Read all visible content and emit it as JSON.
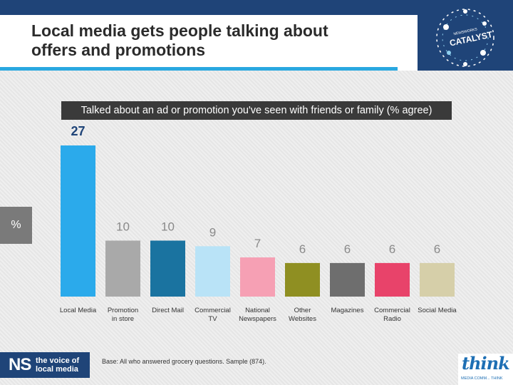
{
  "slide": {
    "title": "Local media gets people talking about\noffers and promotions",
    "subtitle": "Talked about an ad or promotion you've seen with friends or family (% agree)",
    "unit_label": "%",
    "base_note": "Base: All who answered grocery questions. Sample (874).",
    "logos": {
      "ns_mark": "NS",
      "ns_tagline": "the voice of\nlocal media",
      "catalyst": "CATALYST",
      "catalyst_small": "NEWSWORKS",
      "think": "think",
      "think_tagline": "MEDIA COMM... THINK"
    },
    "colors": {
      "header": "#1f4478",
      "accent": "#2aa8e0"
    }
  },
  "chart_data": {
    "type": "bar",
    "title": "Talked about an ad or promotion you've seen with friends or family (% agree)",
    "ylabel": "%",
    "categories": [
      "Local Media",
      "Promotion in store",
      "Direct Mail",
      "Commercial TV",
      "National Newspapers",
      "Other Websites",
      "Magazines",
      "Commercial Radio",
      "Social Media"
    ],
    "category_lines": [
      [
        "Local Media"
      ],
      [
        "Promotion",
        "in store"
      ],
      [
        "Direct Mail"
      ],
      [
        "Commercial",
        "TV"
      ],
      [
        "National",
        "Newspapers"
      ],
      [
        "Other",
        "Websites"
      ],
      [
        "Magazines"
      ],
      [
        "Commercial",
        "Radio"
      ],
      [
        "Social Media"
      ]
    ],
    "values": [
      27,
      10,
      10,
      9,
      7,
      6,
      6,
      6,
      6
    ],
    "bar_colors": [
      "#2baaeb",
      "#a9a9a9",
      "#1a73a0",
      "#b9e3f7",
      "#f6a0b4",
      "#8f8f22",
      "#6e6e6e",
      "#e8436a",
      "#d6cfa9"
    ],
    "highlight_label_color": "#1f4478",
    "label_color": "#8a8a8a",
    "ylim": [
      0,
      27
    ],
    "grid": false,
    "legend": "none"
  }
}
